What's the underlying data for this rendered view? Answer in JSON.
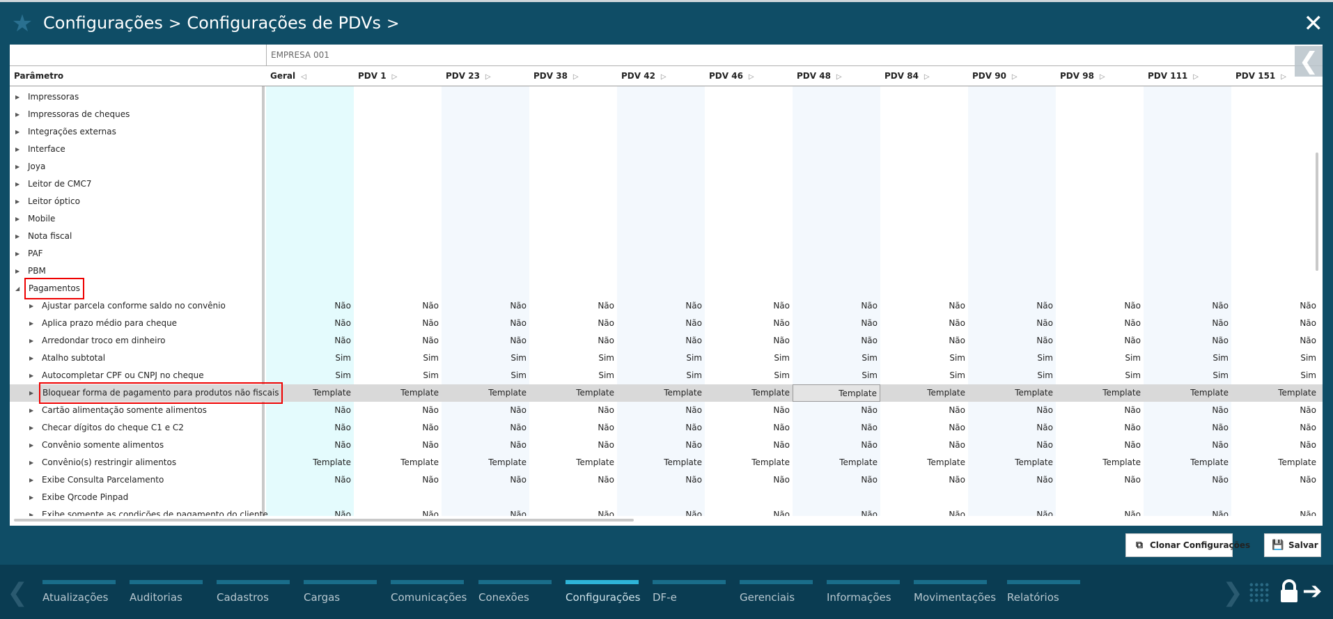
{
  "header": {
    "breadcrumb": [
      "Configurações",
      "Configurações de PDVs"
    ],
    "separator": ">"
  },
  "table": {
    "company": "EMPRESA 001",
    "param_header": "Parâmetro",
    "columns": [
      "Geral",
      "PDV 1",
      "PDV 23",
      "PDV 38",
      "PDV 42",
      "PDV 46",
      "PDV 48",
      "PDV 84",
      "PDV 90",
      "PDV 98",
      "PDV 111",
      "PDV 151"
    ],
    "groups": [
      {
        "label": "Impressoras"
      },
      {
        "label": "Impressoras de cheques"
      },
      {
        "label": "Integrações externas"
      },
      {
        "label": "Interface"
      },
      {
        "label": "Joya"
      },
      {
        "label": "Leitor de CMC7"
      },
      {
        "label": "Leitor óptico"
      },
      {
        "label": "Mobile"
      },
      {
        "label": "Nota fiscal"
      },
      {
        "label": "PAF"
      },
      {
        "label": "PBM"
      },
      {
        "label": "Pagamentos",
        "expanded": true
      }
    ],
    "params": [
      {
        "label": "Ajustar parcela conforme saldo no convênio",
        "value": "Não"
      },
      {
        "label": "Aplica prazo médio para cheque",
        "value": "Não"
      },
      {
        "label": "Arredondar troco em dinheiro",
        "value": "Não"
      },
      {
        "label": "Atalho subtotal",
        "value": "Sim"
      },
      {
        "label": "Autocompletar CPF ou CNPJ no cheque",
        "value": "Sim"
      },
      {
        "label": "Bloquear forma de pagamento para produtos não fiscais",
        "value": "Template",
        "selected": true
      },
      {
        "label": "Cartão alimentação somente alimentos",
        "value": "Não"
      },
      {
        "label": "Checar dígitos do cheque C1 e C2",
        "value": "Não"
      },
      {
        "label": "Convênio somente alimentos",
        "value": "Não"
      },
      {
        "label": "Convênio(s) restringir alimentos",
        "value": "Template"
      },
      {
        "label": "Exibe Consulta Parcelamento",
        "value": "Não"
      },
      {
        "label": "Exibe Qrcode Pinpad",
        "value": ""
      },
      {
        "label": "Exibe somente as condições de pagamento do cliente",
        "value": "Não"
      }
    ]
  },
  "buttons": {
    "clone": "Clonar Configurações",
    "save": "Salvar"
  },
  "nav": {
    "items": [
      "Atualizações",
      "Auditorias",
      "Cadastros",
      "Cargas",
      "Comunicações",
      "Conexões",
      "Configurações",
      "DF-e",
      "Gerenciais",
      "Informações",
      "Movimentações",
      "Relatórios"
    ],
    "active": "Configurações"
  },
  "colors": {
    "accent": "#0f4d66",
    "nav_bg": "#0a3c52",
    "nav_active": "#2eb4d8",
    "highlight": "#e00000"
  },
  "icons": {
    "star": "star-icon",
    "close": "close-icon",
    "collapse": "chevron-left-icon",
    "lock": "lock-icon",
    "exit": "exit-arrow-icon",
    "grid": "grid-icon",
    "clone": "clone-icon",
    "save": "floppy-icon"
  }
}
